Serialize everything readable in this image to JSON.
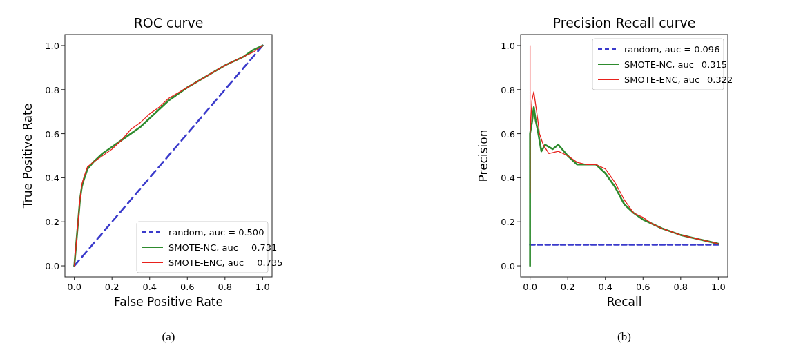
{
  "chart_data": [
    {
      "type": "line",
      "title": "ROC curve",
      "xlabel": "False Positive Rate",
      "ylabel": "True Positive Rate",
      "xlim": [
        -0.05,
        1.05
      ],
      "ylim": [
        -0.05,
        1.05
      ],
      "xticks": [
        {
          "value": 0,
          "label": "0.0"
        },
        {
          "value": 0.2,
          "label": "0.2"
        },
        {
          "value": 0.4,
          "label": "0.4"
        },
        {
          "value": 0.6,
          "label": "0.6"
        },
        {
          "value": 0.8,
          "label": "0.8"
        },
        {
          "value": 1,
          "label": "1.0"
        }
      ],
      "yticks": [
        {
          "value": 0,
          "label": "0.0"
        },
        {
          "value": 0.2,
          "label": "0.2"
        },
        {
          "value": 0.4,
          "label": "0.4"
        },
        {
          "value": 0.6,
          "label": "0.6"
        },
        {
          "value": 0.8,
          "label": "0.8"
        },
        {
          "value": 1,
          "label": "1.0"
        }
      ],
      "legend": "bottom right",
      "grid": false,
      "annotations": [
        "(a)"
      ],
      "series": [
        {
          "name": "random, auc = 0.500",
          "color": "#3a3acb",
          "line_style": "dashed",
          "x": [
            0,
            1
          ],
          "values": [
            0,
            1
          ]
        },
        {
          "name": "SMOTE-NC, auc = 0.731",
          "color": "#2e8b2e",
          "line_style": "solid",
          "x": [
            0,
            0.01,
            0.02,
            0.03,
            0.04,
            0.05,
            0.07,
            0.1,
            0.15,
            0.2,
            0.25,
            0.3,
            0.35,
            0.4,
            0.45,
            0.5,
            0.6,
            0.7,
            0.8,
            0.9,
            0.95,
            1
          ],
          "values": [
            0,
            0.1,
            0.2,
            0.3,
            0.36,
            0.39,
            0.44,
            0.47,
            0.51,
            0.54,
            0.57,
            0.6,
            0.63,
            0.67,
            0.71,
            0.75,
            0.81,
            0.86,
            0.91,
            0.95,
            0.98,
            1
          ]
        },
        {
          "name": "SMOTE-ENC, auc = 0.735",
          "color": "#e8211c",
          "line_style": "solid",
          "x": [
            0,
            0.01,
            0.02,
            0.03,
            0.04,
            0.05,
            0.07,
            0.1,
            0.15,
            0.2,
            0.25,
            0.3,
            0.35,
            0.4,
            0.45,
            0.5,
            0.6,
            0.7,
            0.8,
            0.9,
            0.95,
            1
          ],
          "values": [
            0,
            0.1,
            0.2,
            0.3,
            0.37,
            0.4,
            0.45,
            0.47,
            0.5,
            0.53,
            0.57,
            0.62,
            0.65,
            0.69,
            0.72,
            0.76,
            0.81,
            0.86,
            0.91,
            0.95,
            0.97,
            1
          ]
        }
      ]
    },
    {
      "type": "line",
      "title": "Precision Recall curve",
      "xlabel": "Recall",
      "ylabel": "Precision",
      "xlim": [
        -0.05,
        1.05
      ],
      "ylim": [
        -0.05,
        1.05
      ],
      "xticks": [
        {
          "value": 0,
          "label": "0.0"
        },
        {
          "value": 0.2,
          "label": "0.2"
        },
        {
          "value": 0.4,
          "label": "0.4"
        },
        {
          "value": 0.6,
          "label": "0.6"
        },
        {
          "value": 0.8,
          "label": "0.8"
        },
        {
          "value": 1,
          "label": "1.0"
        }
      ],
      "yticks": [
        {
          "value": 0,
          "label": "0.0"
        },
        {
          "value": 0.2,
          "label": "0.2"
        },
        {
          "value": 0.4,
          "label": "0.4"
        },
        {
          "value": 0.6,
          "label": "0.6"
        },
        {
          "value": 0.8,
          "label": "0.8"
        },
        {
          "value": 1,
          "label": "1.0"
        }
      ],
      "legend": "top right",
      "grid": false,
      "annotations": [
        "(b)"
      ],
      "series": [
        {
          "name": "random, auc = 0.096",
          "color": "#3a3acb",
          "line_style": "dashed",
          "x": [
            0,
            1
          ],
          "values": [
            0.096,
            0.096
          ]
        },
        {
          "name": "SMOTE-NC, auc=0.315",
          "color": "#2e8b2e",
          "line_style": "solid",
          "x": [
            0,
            0,
            0,
            0.01,
            0.02,
            0.03,
            0.04,
            0.06,
            0.08,
            0.12,
            0.15,
            0.2,
            0.25,
            0.3,
            0.35,
            0.4,
            0.45,
            0.5,
            0.55,
            0.6,
            0.7,
            0.8,
            0.9,
            1
          ],
          "values": [
            0,
            0.33,
            0.6,
            0.65,
            0.72,
            0.66,
            0.62,
            0.52,
            0.55,
            0.53,
            0.55,
            0.5,
            0.46,
            0.46,
            0.46,
            0.42,
            0.36,
            0.28,
            0.24,
            0.21,
            0.17,
            0.14,
            0.12,
            0.1
          ]
        },
        {
          "name": "SMOTE-ENC, auc=0.322",
          "color": "#e8211c",
          "line_style": "solid",
          "x": [
            0,
            0,
            0,
            0.01,
            0.02,
            0.03,
            0.04,
            0.05,
            0.07,
            0.1,
            0.15,
            0.2,
            0.25,
            0.3,
            0.35,
            0.4,
            0.45,
            0.5,
            0.55,
            0.6,
            0.65,
            0.7,
            0.8,
            0.9,
            1
          ],
          "values": [
            1,
            0.33,
            0.6,
            0.75,
            0.79,
            0.73,
            0.67,
            0.6,
            0.55,
            0.51,
            0.52,
            0.5,
            0.47,
            0.46,
            0.46,
            0.44,
            0.38,
            0.3,
            0.24,
            0.22,
            0.19,
            0.17,
            0.14,
            0.12,
            0.1
          ]
        }
      ]
    }
  ]
}
